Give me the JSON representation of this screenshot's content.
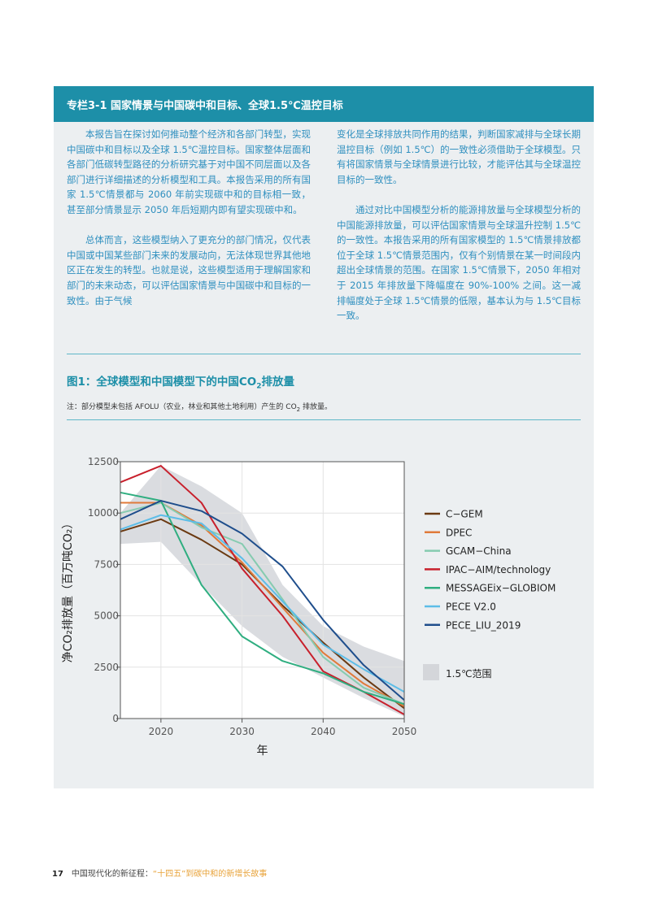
{
  "colors": {
    "header_bg": "#1d8fa8",
    "box_bg": "#eceff1",
    "text_blue": "#2e8fbf",
    "footer_highlight": "#e8a33a",
    "band": "#d4d6da"
  },
  "box": {
    "title": "专栏3-1 国家情景与中国碳中和目标、全球1.5℃温控目标",
    "left_paragraphs": [
      "本报告旨在探讨如何推动整个经济和各部门转型，实现中国碳中和目标以及全球 1.5℃温控目标。国家整体层面和各部门低碳转型路径的分析研究基于对中国不同层面以及各部门进行详细描述的分析模型和工具。本报告采用的所有国家 1.5℃情景都与 2060 年前实现碳中和的目标相一致，甚至部分情景显示 2050 年后短期内即有望实现碳中和。",
      "总体而言，这些模型纳入了更充分的部门情况，仅代表中国或中国某些部门未来的发展动向，无法体现世界其他地区正在发生的转型。也就是说，这些模型适用于理解国家和部门的未来动态，可以评估国家情景与中国碳中和目标的一致性。由于气候"
    ],
    "right_continuation": "变化是全球排放共同作用的结果，判断国家减排与全球长期温控目标（例如 1.5℃）的一致性必须借助于全球模型。只有将国家情景与全球情景进行比较，才能评估其与全球温控目标的一致性。",
    "right_paragraph": "通过对比中国模型分析的能源排放量与全球模型分析的中国能源排放量，可以评估国家情景与全球温升控制 1.5℃的一致性。本报告采用的所有国家模型的 1.5℃情景排放都位于全球 1.5℃情景范围内，仅有个别情景在某一时间段内超出全球情景的范围。在国家 1.5℃情景下，2050 年相对于 2015 年排放量下降幅度在 90%-100% 之间。这一减排幅度处于全球 1.5℃情景的低限，基本认为与 1.5℃目标一致。"
  },
  "figure": {
    "title": "图1：全球模型和中国模型下的中国CO",
    "title_sub": "2",
    "title_end": "排放量",
    "note": "注：部分模型未包括 AFOLU（农业，林业和其他土地利用）产生的 CO",
    "note_sub": "2",
    "note_end": " 排放量。"
  },
  "chart_data": {
    "type": "line",
    "title": "",
    "xlabel": "年",
    "ylabel": "净CO₂排放量（百万吨CO₂）",
    "xlim": [
      2015,
      2050
    ],
    "ylim": [
      0,
      12500
    ],
    "xticks": [
      2020,
      2030,
      2040,
      2050
    ],
    "yticks": [
      0,
      2500,
      5000,
      7500,
      10000,
      12500
    ],
    "x": [
      2015,
      2020,
      2025,
      2030,
      2035,
      2040,
      2045,
      2050
    ],
    "series": [
      {
        "name": "C−GEM",
        "color": "#6b3a12",
        "values": [
          9100,
          9700,
          8700,
          7500,
          5500,
          3700,
          2000,
          500
        ]
      },
      {
        "name": "DPEC",
        "color": "#e07a3a",
        "values": [
          10500,
          10500,
          9400,
          7600,
          5400,
          3200,
          1700,
          600
        ]
      },
      {
        "name": "GCAM−China",
        "color": "#86cbb0",
        "values": [
          10000,
          10500,
          9300,
          8500,
          5800,
          3000,
          1500,
          700
        ]
      },
      {
        "name": "IPAC−AIM/technology",
        "color": "#c8202c",
        "values": [
          11500,
          12300,
          10500,
          7300,
          5000,
          2300,
          1300,
          200
        ]
      },
      {
        "name": "MESSAGEix−GLOBIOM",
        "color": "#2fae80",
        "values": [
          11000,
          10600,
          6500,
          4000,
          2800,
          2200,
          1300,
          700
        ]
      },
      {
        "name": "PECE V2.0",
        "color": "#5cbde8",
        "values": [
          9200,
          9900,
          9500,
          7800,
          5700,
          3600,
          2400,
          1300
        ]
      },
      {
        "name": "PECE_LIU_2019",
        "color": "#1f4e8c",
        "values": [
          9700,
          10600,
          10100,
          9000,
          7400,
          4800,
          2600,
          900
        ]
      }
    ],
    "band": {
      "name": "1.5℃范围",
      "x": [
        2015,
        2020,
        2025,
        2030,
        2035,
        2040,
        2045,
        2050
      ],
      "upper": [
        10000,
        12300,
        11300,
        10000,
        6500,
        4500,
        3500,
        2800
      ],
      "lower": [
        8500,
        8600,
        6500,
        4500,
        3000,
        2000,
        1000,
        100
      ]
    }
  },
  "footer": {
    "page": "17",
    "text": "中国现代化的新征程：",
    "highlight": "“十四五”到碳中和的新增长故事"
  }
}
